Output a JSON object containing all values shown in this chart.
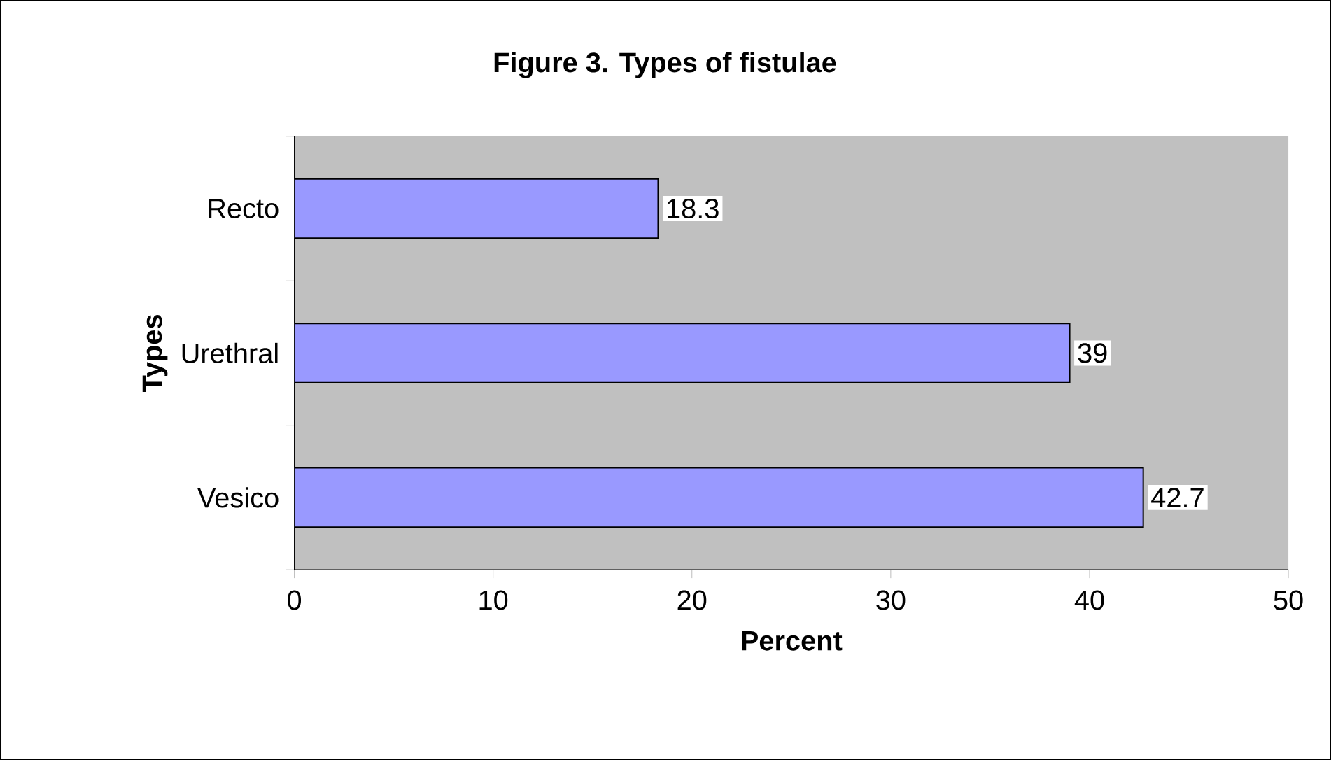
{
  "chart_data": {
    "type": "bar",
    "orientation": "horizontal",
    "title": "Figure 3. Types of fistulae",
    "xlabel": "Percent",
    "ylabel": "Types",
    "categories": [
      "Recto",
      "Urethral",
      "Vesico"
    ],
    "values": [
      18.3,
      39,
      42.7
    ],
    "color": "#9999ff",
    "xlim": [
      0,
      50
    ],
    "xticks": [
      0,
      10,
      20,
      30,
      40,
      50
    ],
    "data_labels": true
  }
}
